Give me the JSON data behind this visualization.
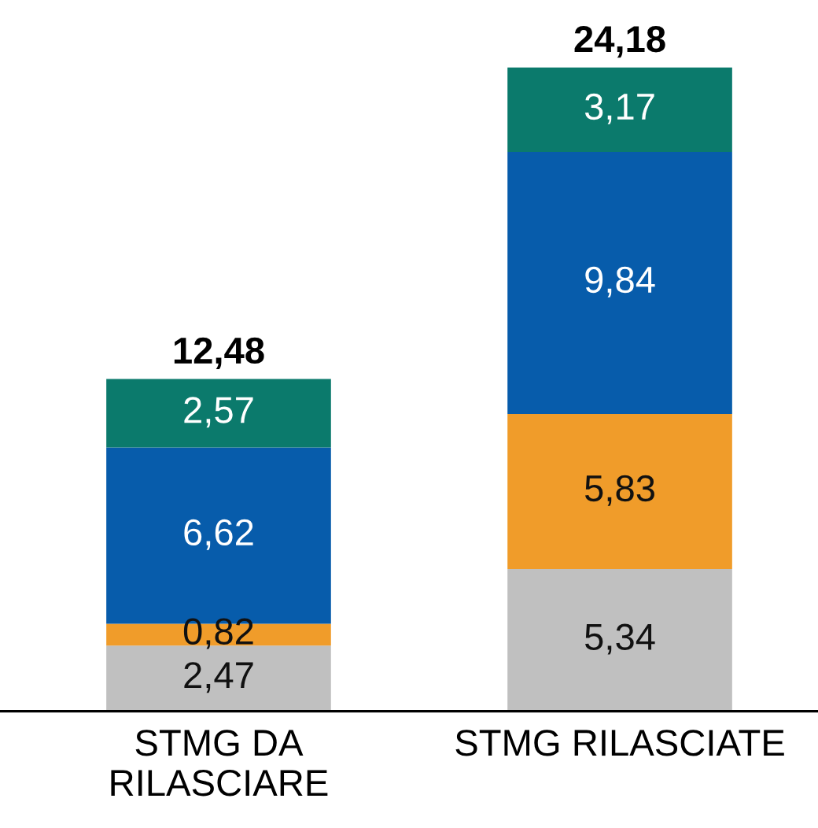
{
  "chart_data": {
    "type": "bar",
    "stacked": true,
    "categories": [
      "STMG DA\nRILASCIARE",
      "STMG RILASCIATE"
    ],
    "series": [
      {
        "color": "#c0c0c0",
        "values": [
          2.47,
          5.34
        ],
        "value_labels": [
          "2,47",
          "5,34"
        ]
      },
      {
        "color": "#f09c2a",
        "values": [
          0.82,
          5.83
        ],
        "value_labels": [
          "0,82",
          "5,83"
        ]
      },
      {
        "color": "#075cab",
        "values": [
          6.62,
          9.84
        ],
        "value_labels": [
          "6,62",
          "9,84"
        ]
      },
      {
        "color": "#0b7a6c",
        "values": [
          2.57,
          3.17
        ],
        "value_labels": [
          "2,57",
          "3,17"
        ]
      }
    ],
    "totals": [
      "12,48",
      "24,18"
    ],
    "legend": false,
    "grid": false
  }
}
